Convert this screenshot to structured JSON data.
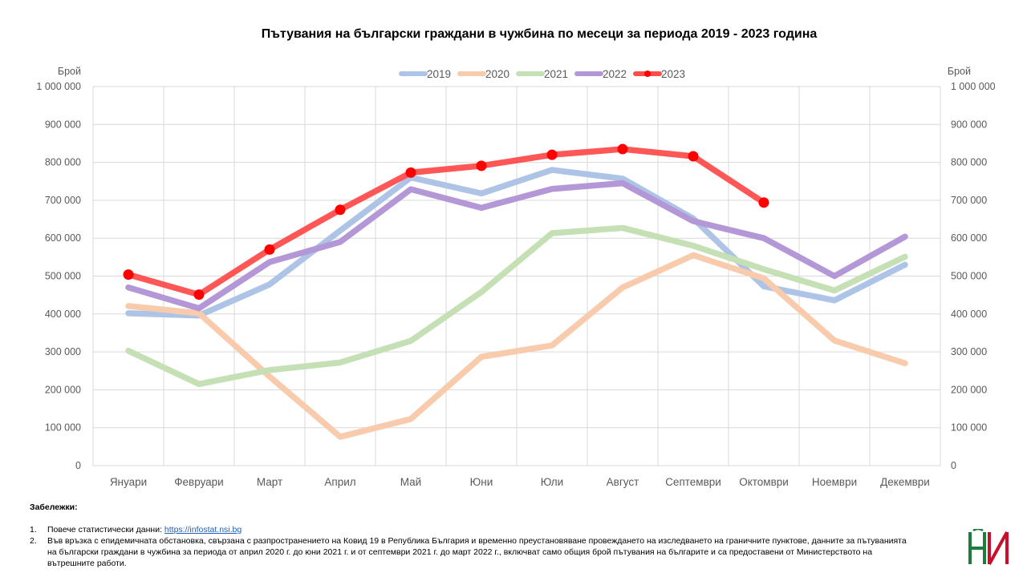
{
  "chart_data": {
    "type": "line",
    "title": "Пътувания на български граждани в чужбина по месеци за периода 2019 - 2023 година",
    "ylabel_left": "Брой",
    "ylabel_right": "Брой",
    "ylim": [
      0,
      1000000
    ],
    "yticks": [
      {
        "v": 0,
        "label": "0"
      },
      {
        "v": 100000,
        "label": "100 000"
      },
      {
        "v": 200000,
        "label": "200 000"
      },
      {
        "v": 300000,
        "label": "300 000"
      },
      {
        "v": 400000,
        "label": "400 000"
      },
      {
        "v": 500000,
        "label": "500 000"
      },
      {
        "v": 600000,
        "label": "600 000"
      },
      {
        "v": 700000,
        "label": "700 000"
      },
      {
        "v": 800000,
        "label": "800 000"
      },
      {
        "v": 900000,
        "label": "900 000"
      },
      {
        "v": 1000000,
        "label": "1 000 000"
      }
    ],
    "categories": [
      "Януари",
      "Февруари",
      "Март",
      "Април",
      "Май",
      "Юни",
      "Юли",
      "Август",
      "Септември",
      "Октомври",
      "Ноември",
      "Декември"
    ],
    "grid": true,
    "legend_position": "top",
    "series": [
      {
        "name": "2019",
        "color": "#aec4e7",
        "values": [
          402000,
          396000,
          478000,
          620000,
          760000,
          718000,
          780000,
          757000,
          652000,
          473000,
          436000,
          530000
        ]
      },
      {
        "name": "2020",
        "color": "#f8cbad",
        "values": [
          421000,
          402000,
          235000,
          76000,
          123000,
          287000,
          317000,
          470000,
          555000,
          494000,
          330000,
          270000
        ]
      },
      {
        "name": "2021",
        "color": "#c5e0b4",
        "values": [
          303000,
          215000,
          252000,
          272000,
          329000,
          458000,
          613000,
          627000,
          580000,
          518000,
          462000,
          551000
        ]
      },
      {
        "name": "2022",
        "color": "#b497d6",
        "values": [
          470000,
          415000,
          537000,
          590000,
          729000,
          680000,
          730000,
          745000,
          645000,
          600000,
          500000,
          604000
        ]
      },
      {
        "name": "2023",
        "color": "#ff4d4d",
        "marker_color": "#ff0000",
        "values": [
          504000,
          451000,
          570000,
          675000,
          773000,
          791000,
          820000,
          835000,
          816000,
          694000,
          null,
          null
        ]
      }
    ]
  },
  "notes": {
    "title": "Забележки:",
    "items": [
      {
        "num": "1.",
        "text": "Повече статистически данни: ",
        "link": "https://infostat.nsi.bg"
      },
      {
        "num": "2.",
        "text": "Във връзка с епидемичната обстановка, свързана с разпространението на Ковид 19 в Република България и временно преустановяване провеждането на изследването на граничните пунктове, данните за пътуванията на български граждани в чужбина за периода от април 2020 г. до юни 2021 г. и  от септември 2021 г. до март 2022 г., включват само общия брой пътувания на българите и са предоставени от Министерството на вътрешните работи."
      }
    ]
  },
  "logo": {
    "name": "nsi-logo",
    "colors": {
      "green": "#1e7d3c",
      "red": "#c8102e"
    }
  }
}
